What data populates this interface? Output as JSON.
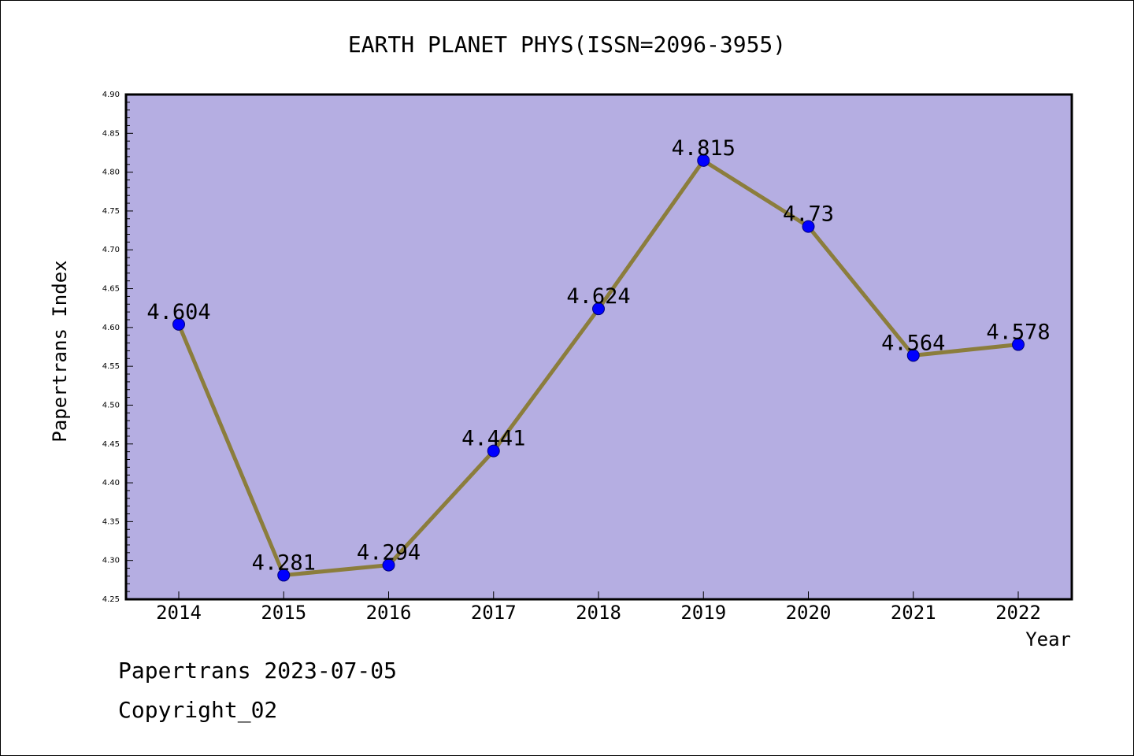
{
  "chart_data": {
    "type": "line",
    "title": "EARTH PLANET PHYS(ISSN=2096-3955)",
    "xlabel": "Year",
    "ylabel": "Papertrans Index",
    "categories": [
      "2014",
      "2015",
      "2016",
      "2017",
      "2018",
      "2019",
      "2020",
      "2021",
      "2022"
    ],
    "values": [
      4.604,
      4.281,
      4.294,
      4.441,
      4.624,
      4.815,
      4.73,
      4.564,
      4.578
    ],
    "data_labels": [
      "4.604",
      "4.281",
      "4.294",
      "4.441",
      "4.624",
      "4.815",
      "4.73",
      "4.564",
      "4.578"
    ],
    "ylim": [
      4.25,
      4.9
    ],
    "yticks": [
      "4.25",
      "4.30",
      "4.35",
      "4.40",
      "4.45",
      "4.50",
      "4.55",
      "4.60",
      "4.65",
      "4.70",
      "4.75",
      "4.80",
      "4.85",
      "4.90"
    ],
    "grid": false,
    "legend": "none",
    "colors": {
      "plot_background": "#b5aee2",
      "line": "#8b7d3c",
      "marker": "#0000ff",
      "axis": "#000000"
    }
  },
  "footer": {
    "source": "Papertrans 2023-07-05",
    "copyright": "Copyright_02"
  }
}
